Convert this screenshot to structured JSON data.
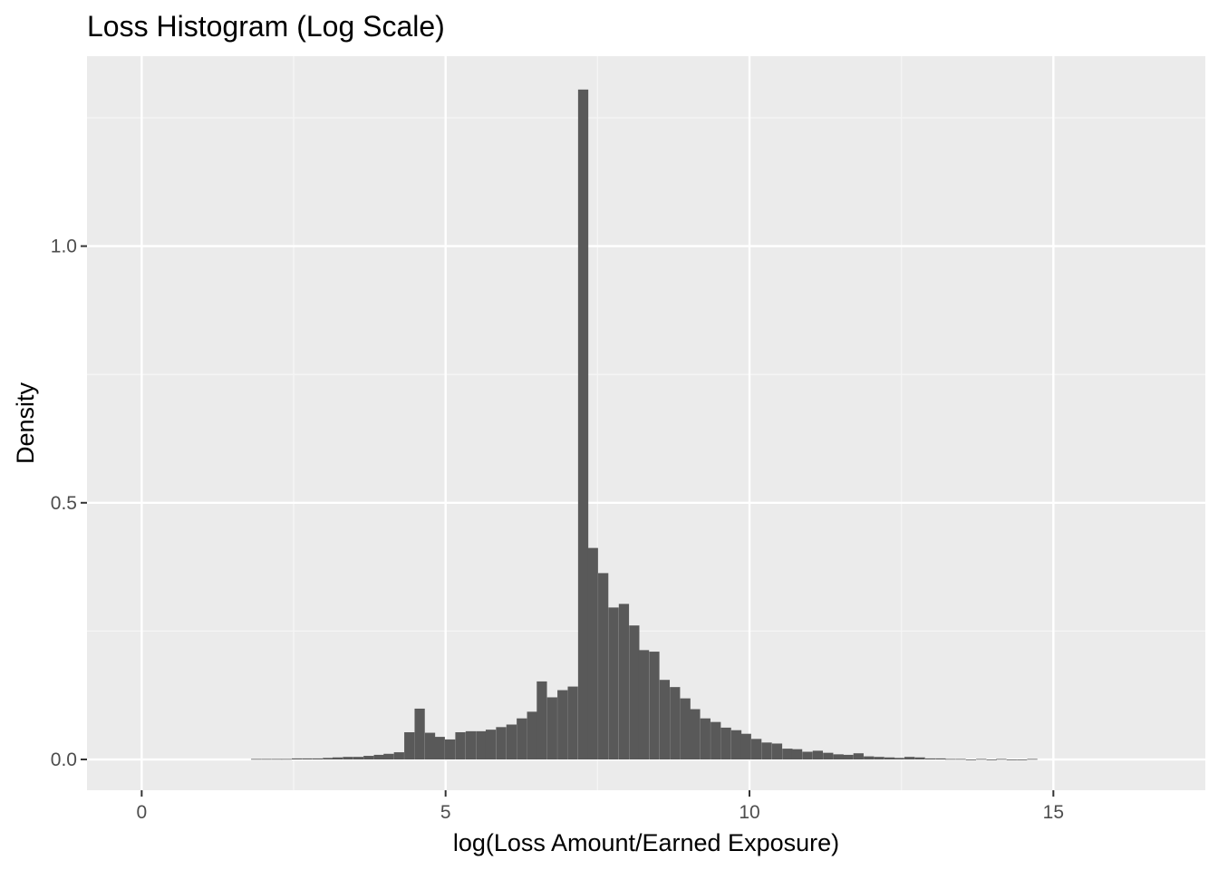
{
  "chart_data": {
    "type": "bar",
    "title": "Loss Histogram (Log Scale)",
    "xlabel": "log(Loss Amount/Earned Exposure)",
    "ylabel": "Density",
    "xlim": [
      -0.9,
      17.5
    ],
    "ylim": [
      -0.06,
      1.37
    ],
    "x_ticks": [
      0,
      5,
      10,
      15
    ],
    "x_tick_labels": [
      "0",
      "5",
      "10",
      "15"
    ],
    "y_ticks": [
      0.0,
      0.5,
      1.0
    ],
    "y_tick_labels": [
      "0.0",
      "0.5",
      "1.0"
    ],
    "grid": true,
    "legend": "none",
    "bin_width": 0.168,
    "bins_start": [
      1.8,
      1.97,
      2.14,
      2.3,
      2.47,
      2.64,
      2.81,
      2.98,
      3.14,
      3.31,
      3.48,
      3.65,
      3.82,
      3.98,
      4.15,
      4.32,
      4.49,
      4.66,
      4.82,
      4.99,
      5.16,
      5.33,
      5.5,
      5.66,
      5.83,
      6.0,
      6.17,
      6.34,
      6.5,
      6.67,
      6.84,
      7.01,
      7.18,
      7.34,
      7.51,
      7.68,
      7.85,
      8.02,
      8.18,
      8.35,
      8.52,
      8.69,
      8.86,
      9.02,
      9.19,
      9.36,
      9.53,
      9.7,
      9.86,
      10.03,
      10.2,
      10.37,
      10.54,
      10.7,
      10.87,
      11.04,
      11.21,
      11.38,
      11.54,
      11.71,
      11.88,
      12.05,
      12.22,
      12.38,
      12.55,
      12.72,
      12.89,
      13.06,
      13.22,
      13.39,
      13.56,
      13.73,
      13.9,
      14.06,
      14.23,
      14.4,
      14.57
    ],
    "density": [
      0.001,
      0.001,
      0.001,
      0.001,
      0.002,
      0.002,
      0.002,
      0.003,
      0.004,
      0.005,
      0.005,
      0.007,
      0.009,
      0.011,
      0.014,
      0.053,
      0.099,
      0.052,
      0.044,
      0.039,
      0.053,
      0.055,
      0.055,
      0.058,
      0.063,
      0.068,
      0.08,
      0.093,
      0.152,
      0.121,
      0.135,
      0.142,
      1.305,
      0.412,
      0.363,
      0.296,
      0.303,
      0.261,
      0.213,
      0.21,
      0.155,
      0.141,
      0.119,
      0.098,
      0.08,
      0.073,
      0.062,
      0.057,
      0.05,
      0.04,
      0.033,
      0.031,
      0.021,
      0.02,
      0.015,
      0.017,
      0.013,
      0.01,
      0.009,
      0.012,
      0.006,
      0.005,
      0.004,
      0.003,
      0.005,
      0.004,
      0.002,
      0.002,
      0.001,
      0.001,
      0.0,
      0.001,
      0.0,
      0.001,
      0.0,
      0.0,
      0.001
    ],
    "colors": {
      "bar": "#595959",
      "panel": "#ebebeb",
      "grid_major": "#ffffff",
      "grid_minor": "#f5f5f5",
      "tick_label": "#4d4d4d",
      "tick_mark": "#333333"
    }
  }
}
